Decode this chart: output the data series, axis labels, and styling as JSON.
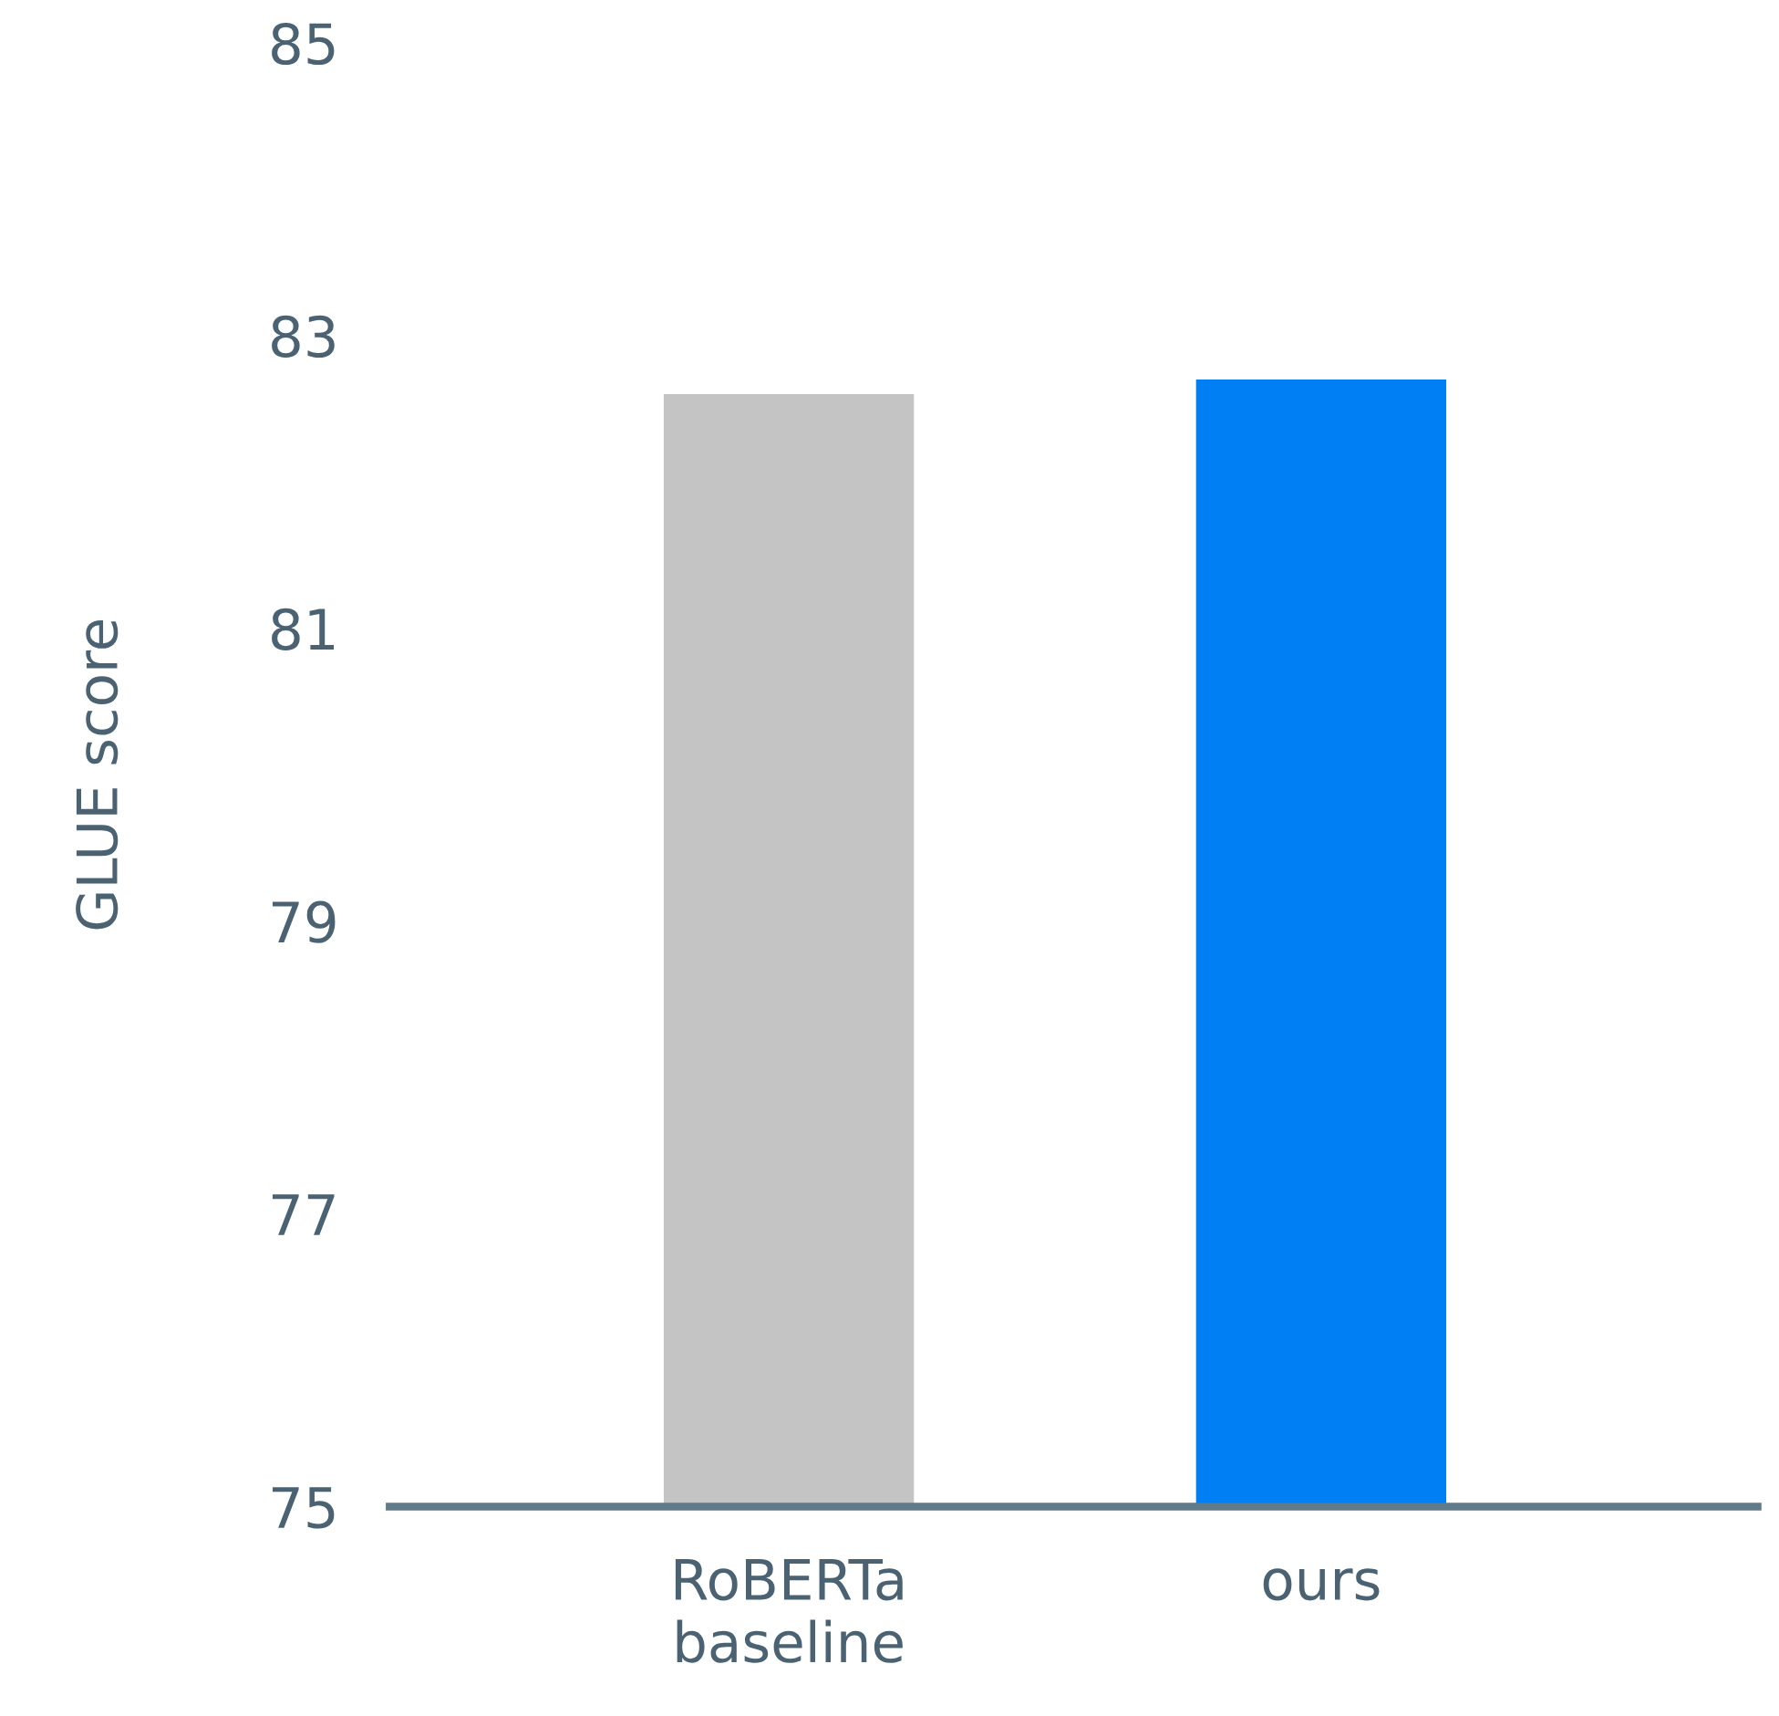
{
  "chart_data": {
    "type": "bar",
    "ylabel": "GLUE score",
    "categories": [
      "RoBERTa\nbaseline",
      "ours"
    ],
    "values": [
      82.6,
      82.7
    ],
    "colors": [
      "#c4c4c4",
      "#007ff5"
    ],
    "ylim": [
      75,
      85
    ],
    "yticks": [
      75,
      77,
      79,
      81,
      83,
      85
    ],
    "grid": false,
    "legend": false
  }
}
